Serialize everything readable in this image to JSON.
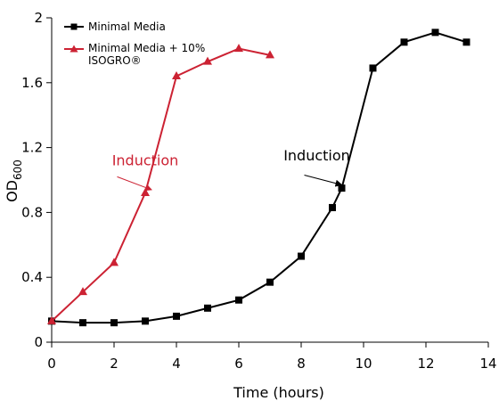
{
  "chart_data": {
    "type": "line",
    "title": "",
    "xlabel": "Time (hours)",
    "ylabel_main": "OD",
    "ylabel_sub": "600",
    "xlim": [
      0,
      14
    ],
    "ylim": [
      0,
      2
    ],
    "xticks": [
      0,
      2,
      4,
      6,
      8,
      10,
      12,
      14
    ],
    "xtick_labels": [
      "0",
      "2",
      "4",
      "6",
      "8",
      "10",
      "12",
      "14"
    ],
    "yticks": [
      0,
      0.4,
      0.8,
      1.2,
      1.6,
      2
    ],
    "ytick_labels": [
      "0",
      "0.4",
      "0.8",
      "1.2",
      "1.6",
      "2"
    ],
    "grid": false,
    "legend_position": "top-left",
    "series": [
      {
        "name": "Minimal Media",
        "color": "#000000",
        "marker": "square",
        "x": [
          0,
          1,
          2,
          3,
          4,
          5,
          6,
          7,
          8,
          9,
          9.3,
          10.3,
          11.3,
          12.3,
          13.3
        ],
        "y": [
          0.13,
          0.12,
          0.12,
          0.13,
          0.16,
          0.21,
          0.26,
          0.37,
          0.53,
          0.83,
          0.95,
          1.69,
          1.85,
          1.91,
          1.85
        ]
      },
      {
        "name_line1": "Minimal Media + 10%",
        "name_line2": "ISOGRO®",
        "color": "#cc2233",
        "marker": "triangle",
        "x": [
          0,
          1,
          2,
          3,
          4,
          5,
          6,
          7
        ],
        "y": [
          0.13,
          0.31,
          0.49,
          0.92,
          1.64,
          1.73,
          1.81,
          1.77
        ]
      }
    ],
    "annotations": [
      {
        "text": "Induction",
        "color": "#cc2233",
        "text_x": 3.0,
        "text_y": 1.09,
        "arrow_from": [
          2.1,
          1.02
        ],
        "arrow_to": [
          3.2,
          0.94
        ]
      },
      {
        "text": "Induction",
        "color": "#000000",
        "text_x": 8.5,
        "text_y": 1.12,
        "arrow_from": [
          8.1,
          1.03
        ],
        "arrow_to": [
          9.3,
          0.97
        ]
      }
    ]
  }
}
